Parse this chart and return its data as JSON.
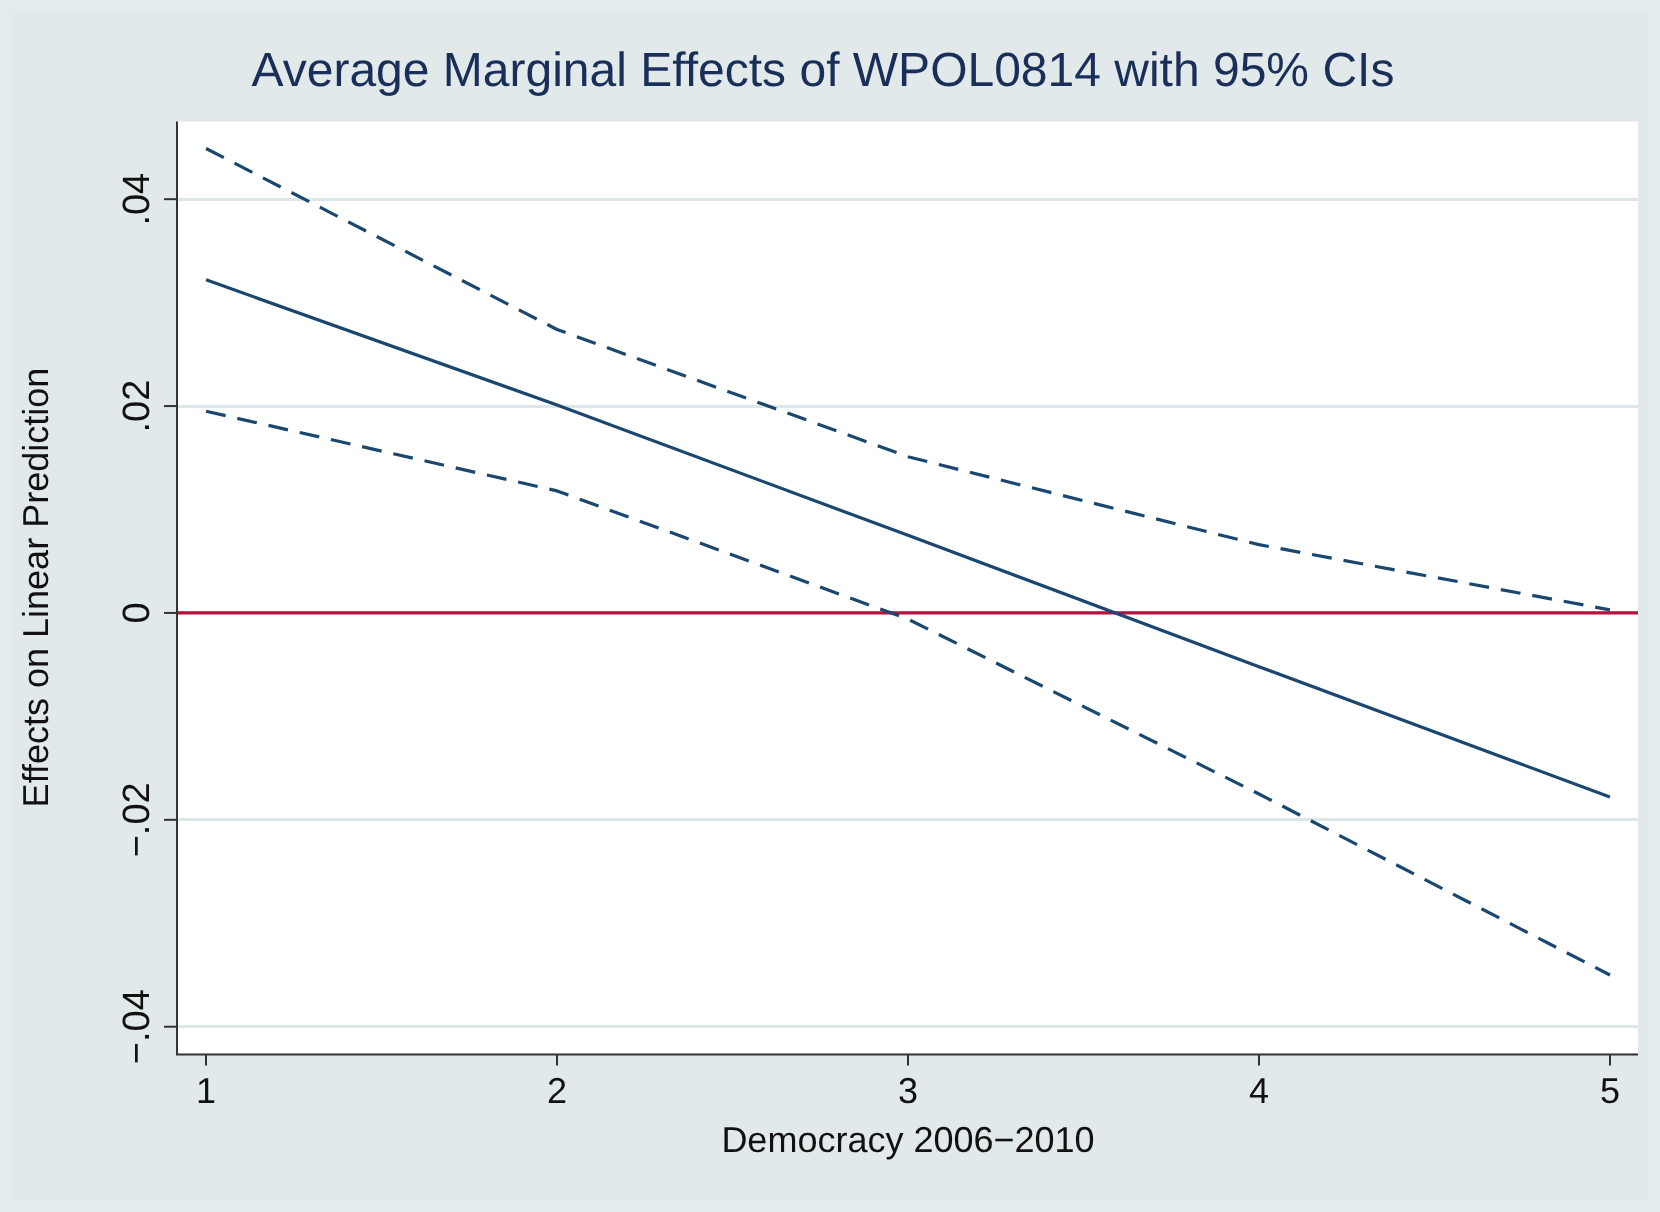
{
  "chart_data": {
    "type": "line",
    "title": "Average Marginal Effects of WPOL0814 with 95% CIs",
    "xlabel": "Democracy 2006−2010",
    "ylabel": "Effects on Linear Prediction",
    "x": [
      1,
      2,
      3,
      4,
      5
    ],
    "series": [
      {
        "color": "#1a476f",
        "values": [
          0.0322,
          0.0201,
          0.0075,
          -0.0052,
          -0.0178
        ],
        "line_style": "solid"
      },
      {
        "color": "#1a476f",
        "values": [
          0.0449,
          0.0274,
          0.0151,
          0.0066,
          0.0003
        ],
        "line_style": "dashed"
      },
      {
        "color": "#1a476f",
        "values": [
          0.0195,
          0.0118,
          -0.0006,
          -0.0175,
          -0.035
        ],
        "line_style": "dashed"
      }
    ],
    "xlim": [
      0.92,
      5.08
    ],
    "xticks": [
      1,
      2,
      3,
      4,
      5
    ],
    "ylim": [
      -0.0426,
      0.0475
    ],
    "yticks": [
      {
        "value": -0.04,
        "label": "−.04"
      },
      {
        "value": -0.02,
        "label": "−.02"
      },
      {
        "value": 0,
        "label": "0"
      },
      {
        "value": 0.02,
        "label": ".02"
      },
      {
        "value": 0.04,
        "label": ".04"
      }
    ],
    "ref_lines": [
      {
        "axis": "y",
        "value": 0,
        "color": "#b5123d"
      }
    ],
    "grid": "y",
    "legend": false,
    "marker": "none"
  }
}
